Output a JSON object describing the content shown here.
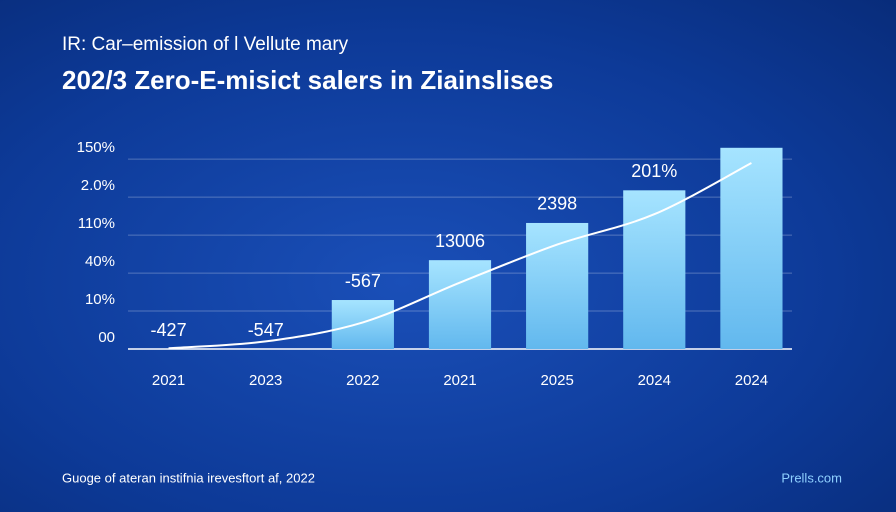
{
  "chart_data": {
    "type": "bar",
    "subtitle": "IR: Car–emission of l Vellute mary",
    "title": "202/3 Zero-E-misict salers in Ziainslises",
    "categories": [
      "2021",
      "2023",
      "2022",
      "2021",
      "2025",
      "2024",
      "2024"
    ],
    "values": [
      0,
      0,
      1.29,
      2.34,
      3.32,
      4.18,
      5.3
    ],
    "line_values": [
      0.02,
      0.2,
      0.7,
      1.75,
      2.75,
      3.55,
      4.9
    ],
    "annotations": [
      "-427",
      "-547",
      "-567",
      "13006",
      "2398",
      "201%"
    ],
    "ylim": [
      0,
      5.4
    ],
    "yticks": [
      {
        "value": 0,
        "label": "00"
      },
      {
        "value": 1,
        "label": "10%"
      },
      {
        "value": 2,
        "label": "40%"
      },
      {
        "value": 3,
        "label": "110%"
      },
      {
        "value": 4,
        "label": "2.0%"
      },
      {
        "value": 5,
        "label": "150%"
      }
    ],
    "grid": true,
    "source": "Guoge of ateran instifnia irevesftort af, 2022",
    "brand": "Prells.com"
  }
}
